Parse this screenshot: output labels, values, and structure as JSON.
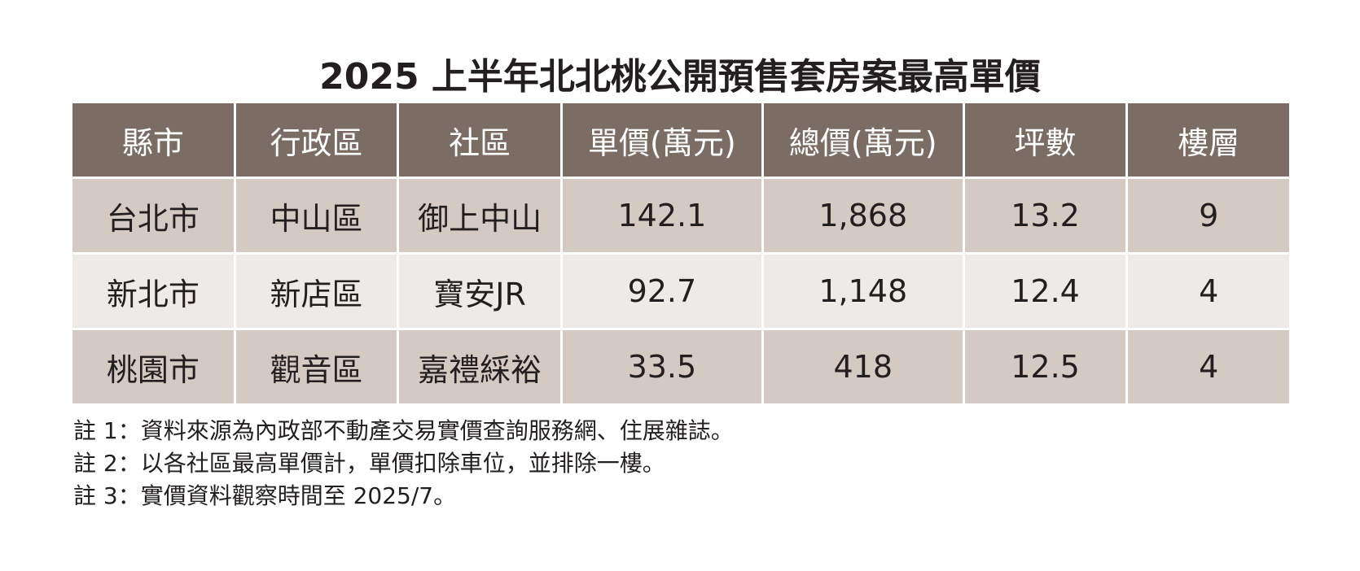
{
  "chart_data": {
    "type": "table",
    "title": "2025 上半年北北桃公開預售套房案最高單價",
    "columns": [
      "縣市",
      "行政區",
      "社區",
      "單價(萬元)",
      "總價(萬元)",
      "坪數",
      "樓層"
    ],
    "rows": [
      [
        "台北市",
        "中山區",
        "御上中山",
        "142.1",
        "1,868",
        "13.2",
        "9"
      ],
      [
        "新北市",
        "新店區",
        "寶安JR",
        "92.7",
        "1,148",
        "12.4",
        "4"
      ],
      [
        "桃園市",
        "觀音區",
        "嘉禮綵裕",
        "33.5",
        "418",
        "12.5",
        "4"
      ]
    ],
    "notes": [
      "註 1：資料來源為內政部不動產交易實價查詢服務網、住展雜誌。",
      "註 2：以各社區最高單價計，單價扣除車位，並排除一樓。",
      "註 3：實價資料觀察時間至 2025/7。"
    ]
  },
  "colors": {
    "header_bg": "#7b6d64",
    "header_text": "#ffffff",
    "row_shade": "#d4cac4",
    "row_light": "#eeeae7",
    "text": "#231f20"
  }
}
